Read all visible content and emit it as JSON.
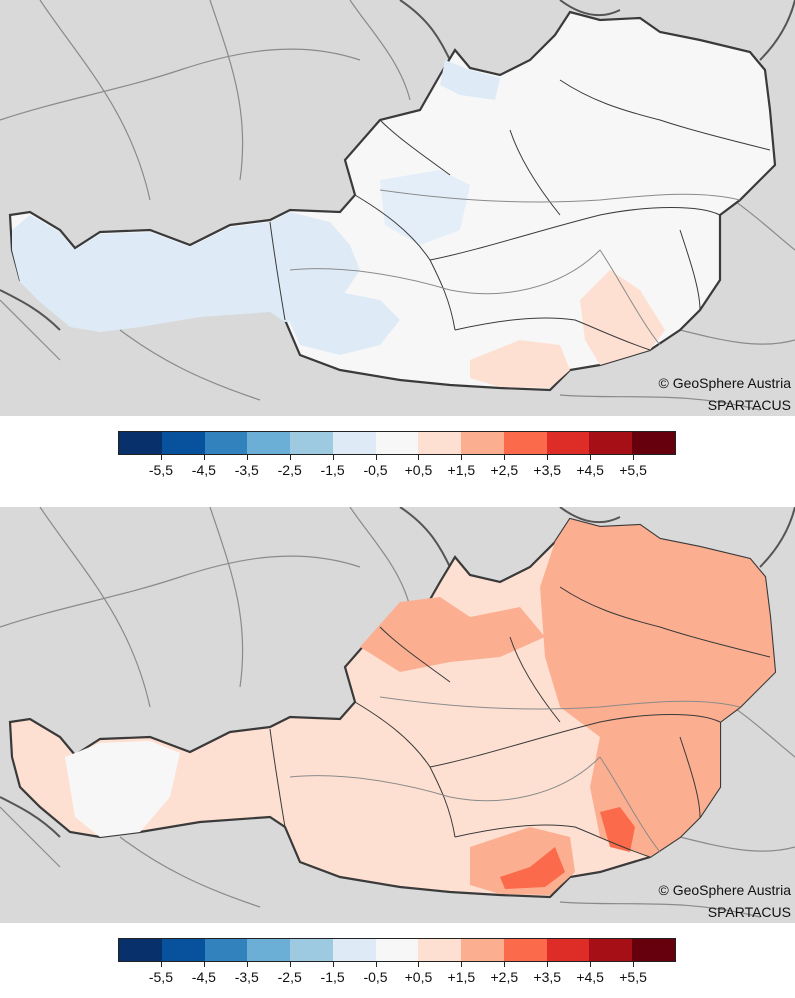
{
  "maps": [
    {
      "id": "top",
      "credit_line1": "© GeoSphere Austria",
      "credit_line2": "SPARTACUS",
      "fill_class_main": "-0,5 to +0,5",
      "fill_class_west": "-1,5 to -0,5",
      "fill_class_southeast": "+0,5 to +1,5"
    },
    {
      "id": "bottom",
      "credit_line1": "© GeoSphere Austria",
      "credit_line2": "SPARTACUS",
      "fill_class_main": "+0,5 to +1,5",
      "fill_class_east": "+1,5 to +2,5",
      "fill_class_hotspot": "+2,5 to +3,5"
    }
  ],
  "legend": {
    "colors": [
      "#08306b",
      "#08519c",
      "#3182bd",
      "#6baed6",
      "#9ecae1",
      "#deebf7",
      "#f7f7f7",
      "#fee0d2",
      "#fcae91",
      "#fb6a4a",
      "#de2d26",
      "#a50f15",
      "#67000d"
    ],
    "tick_labels": [
      "-5,5",
      "-4,5",
      "-3,5",
      "-2,5",
      "-1,5",
      "-0,5",
      "+0,5",
      "+1,5",
      "+2,5",
      "+3,5",
      "+4,5",
      "+5,5"
    ]
  }
}
